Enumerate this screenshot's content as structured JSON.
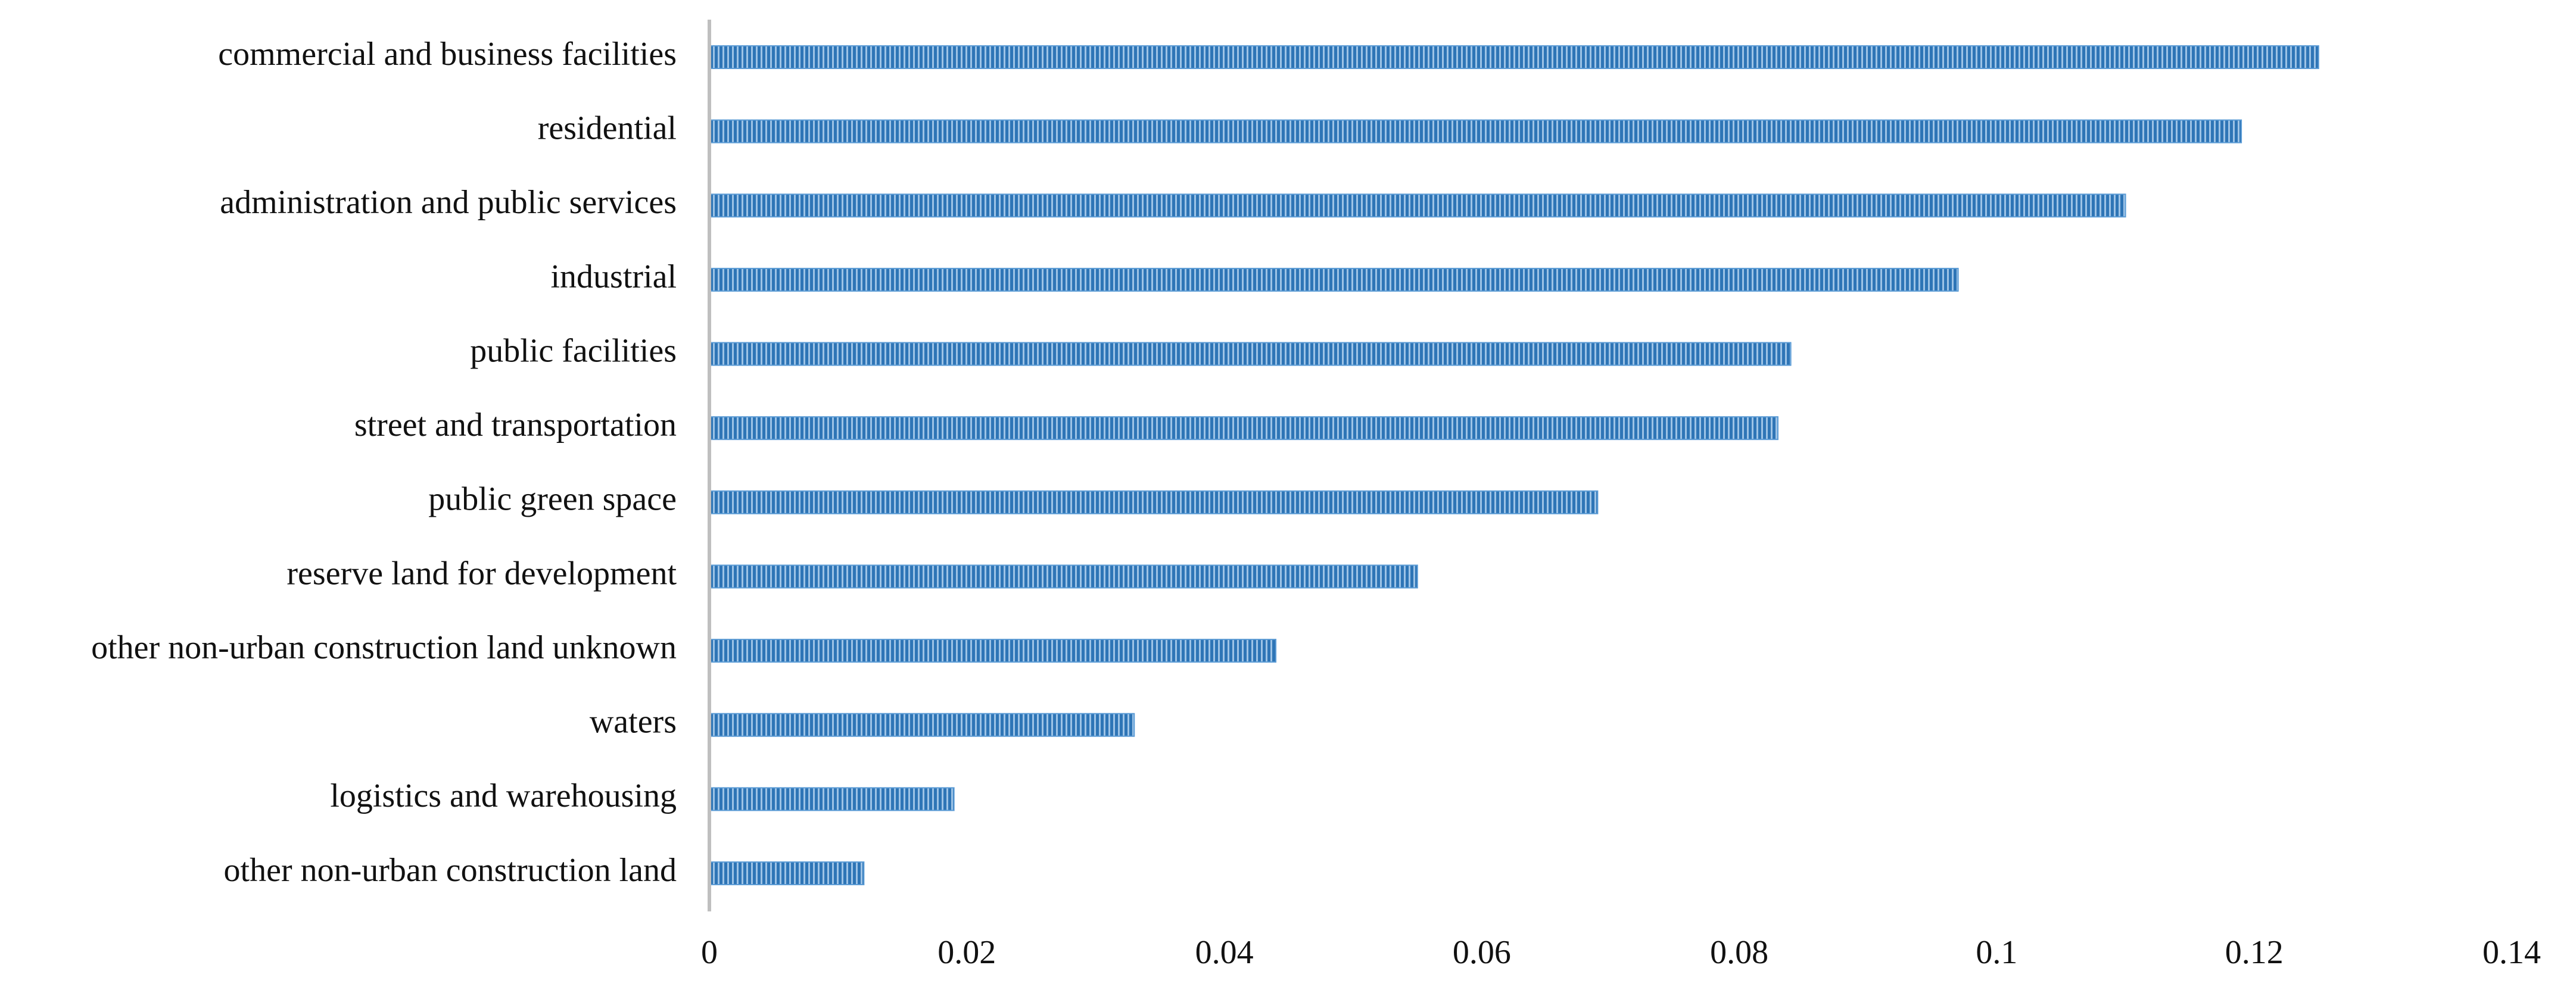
{
  "chart_data": {
    "type": "bar",
    "orientation": "horizontal",
    "categories": [
      "commercial and business facilities",
      "residential",
      "administration and public services",
      "industrial",
      "public facilities",
      "street and transportation",
      "public green space",
      "reserve land for development",
      "other non-urban construction land unknown",
      "waters",
      "logistics and warehousing",
      "other non-urban construction land"
    ],
    "values": [
      0.125,
      0.119,
      0.11,
      0.097,
      0.084,
      0.083,
      0.069,
      0.055,
      0.044,
      0.033,
      0.019,
      0.012
    ],
    "color": "#5b9bd5",
    "xlim": [
      0,
      0.14
    ],
    "xticks": [
      0,
      0.02,
      0.04,
      0.06,
      0.08,
      0.1,
      0.12,
      0.14
    ],
    "grid": false
  }
}
